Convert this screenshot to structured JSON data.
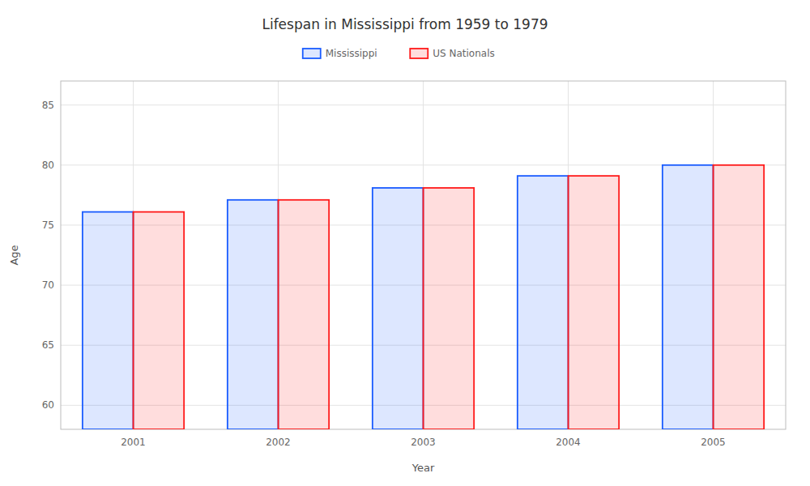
{
  "chart_data": {
    "type": "bar",
    "title": "Lifespan in Mississippi from 1959 to 1979",
    "xlabel": "Year",
    "ylabel": "Age",
    "categories": [
      "2001",
      "2002",
      "2003",
      "2004",
      "2005"
    ],
    "series": [
      {
        "name": "Mississippi",
        "color": "#1a5cff",
        "values": [
          76.1,
          77.1,
          78.1,
          79.1,
          80.0
        ]
      },
      {
        "name": "US Nationals",
        "color": "#ff1a1a",
        "values": [
          76.1,
          77.1,
          78.1,
          79.1,
          80.0
        ]
      }
    ],
    "ylim": [
      58,
      87
    ],
    "yticks": [
      60,
      65,
      70,
      75,
      80,
      85
    ],
    "grid": true,
    "legend": "top"
  }
}
